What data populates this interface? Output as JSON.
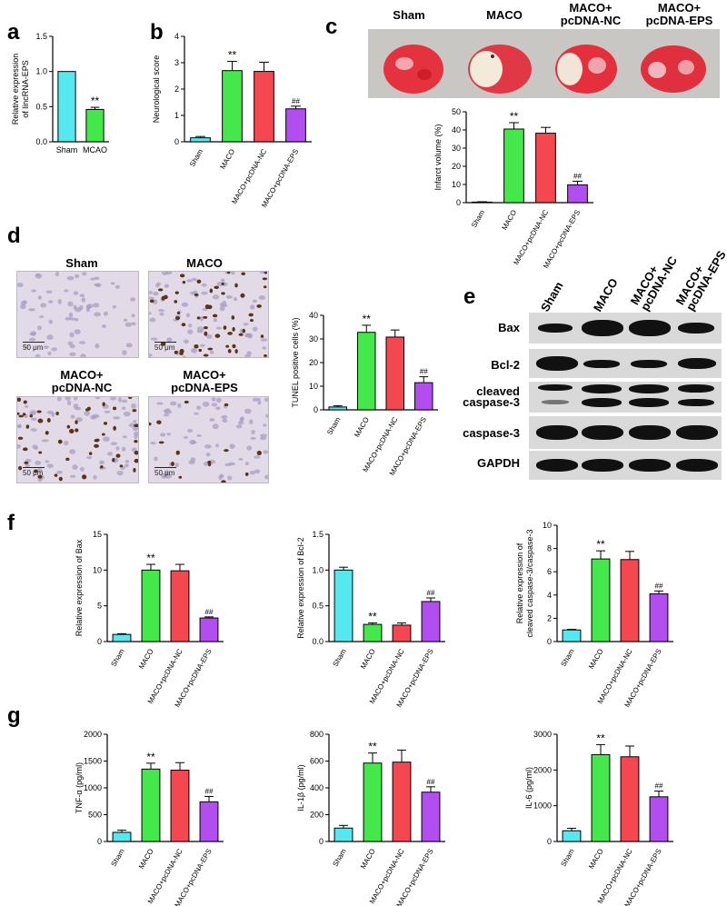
{
  "panels": {
    "a": "a",
    "b": "b",
    "c": "c",
    "d": "d",
    "e": "e",
    "f": "f",
    "g": "g"
  },
  "colors": {
    "sham": "#55e8ef",
    "maco": "#44e84a",
    "nc": "#f44750",
    "eps": "#b24ef0"
  },
  "photo_groups": {
    "sham": "Sham",
    "maco": "MACO",
    "nc_line1": "MACO+",
    "nc_line2": "pcDNA-NC",
    "eps_line1": "MACO+",
    "eps_line2": "pcDNA-EPS"
  },
  "scale_bar": "50 μm",
  "blot": {
    "rows": [
      "Bax",
      "Bcl-2",
      "cleaved",
      "caspase-3",
      "caspase-3",
      "GAPDH"
    ],
    "lanes": [
      {
        "l1": "Sham",
        "l2": ""
      },
      {
        "l1": "MACO",
        "l2": ""
      },
      {
        "l1": "MACO+",
        "l2": "pcDNA-NC"
      },
      {
        "l1": "MACO+",
        "l2": "pcDNA-EPS"
      }
    ]
  },
  "chart_data": [
    {
      "id": "a",
      "type": "bar",
      "categories": [
        "Sham",
        "MCAO"
      ],
      "values": [
        1.0,
        0.46
      ],
      "errors": [
        0,
        0.03
      ],
      "marks": [
        "",
        "**"
      ],
      "ylabel": [
        "Relative expression",
        "of lincRNA-EPS"
      ],
      "ylim": [
        0,
        1.5
      ],
      "yticks": [
        "0.0",
        "0.5",
        "1.0",
        "1.5"
      ],
      "rotate": false
    },
    {
      "id": "b",
      "type": "bar",
      "categories": [
        "Sham",
        "MACO",
        "MACO+pcDNA-NC",
        "MACO+pcDNA-EPS"
      ],
      "values": [
        0.15,
        2.7,
        2.67,
        1.25
      ],
      "errors": [
        0.05,
        0.35,
        0.35,
        0.1
      ],
      "marks": [
        "",
        "**",
        "",
        "##"
      ],
      "ylabel": [
        "Neurological score"
      ],
      "ylim": [
        0,
        4
      ],
      "yticks": [
        "0",
        "1",
        "2",
        "3",
        "4"
      ],
      "rotate": true
    },
    {
      "id": "c",
      "type": "bar",
      "categories": [
        "Sham",
        "MACO",
        "MACO+pcDNA-NC",
        "MACO+pcDNA-EPS"
      ],
      "values": [
        0.3,
        40.5,
        38.2,
        9.8
      ],
      "errors": [
        0.2,
        3.5,
        3.2,
        2.0
      ],
      "marks": [
        "",
        "**",
        "",
        "##"
      ],
      "ylabel": [
        "Infarct volume (%)"
      ],
      "ylim": [
        0,
        50
      ],
      "yticks": [
        "0",
        "10",
        "20",
        "30",
        "40",
        "50"
      ],
      "rotate": true
    },
    {
      "id": "d",
      "type": "bar",
      "categories": [
        "Sham",
        "MACO",
        "MACO+pcDNA-NC",
        "MACO+pcDNA-EPS"
      ],
      "values": [
        1.2,
        32.8,
        30.8,
        11.5
      ],
      "errors": [
        0.5,
        3.0,
        3.0,
        2.5
      ],
      "marks": [
        "",
        "**",
        "",
        "##"
      ],
      "ylabel": [
        "TUNEL positive cells (%)"
      ],
      "ylim": [
        0,
        40
      ],
      "yticks": [
        "0",
        "10",
        "20",
        "30",
        "40"
      ],
      "rotate": true
    },
    {
      "id": "f1",
      "type": "bar",
      "categories": [
        "Sham",
        "MACO",
        "MACO+pcDNA-NC",
        "MACO+pcDNA-EPS"
      ],
      "values": [
        1.0,
        10.0,
        9.9,
        3.3
      ],
      "errors": [
        0.1,
        0.8,
        0.9,
        0.15
      ],
      "marks": [
        "",
        "**",
        "",
        "##"
      ],
      "ylabel": [
        "Relative expression of Bax"
      ],
      "ylim": [
        0,
        15
      ],
      "yticks": [
        "0",
        "5",
        "10",
        "15"
      ],
      "rotate": true
    },
    {
      "id": "f2",
      "type": "bar",
      "categories": [
        "Sham",
        "MACO",
        "MACO+pcDNA-NC",
        "MACO+pcDNA-EPS"
      ],
      "values": [
        1.0,
        0.24,
        0.23,
        0.56
      ],
      "errors": [
        0.04,
        0.02,
        0.03,
        0.05
      ],
      "marks": [
        "",
        "**",
        "",
        "##"
      ],
      "ylabel": [
        "Relative expression of Bcl-2"
      ],
      "ylim": [
        0,
        1.5
      ],
      "yticks": [
        "0.0",
        "0.5",
        "1.0",
        "1.5"
      ],
      "rotate": true
    },
    {
      "id": "f3",
      "type": "bar",
      "categories": [
        "Sham",
        "MACO",
        "MACO+pcDNA-NC",
        "MACO+pcDNA-EPS"
      ],
      "values": [
        1.0,
        7.1,
        7.05,
        4.1
      ],
      "errors": [
        0.05,
        0.7,
        0.7,
        0.25
      ],
      "marks": [
        "",
        "**",
        "",
        "##"
      ],
      "ylabel": [
        "Relative expression of",
        "cleaved caspase-3/caspase-3"
      ],
      "ylim": [
        0,
        10
      ],
      "yticks": [
        "0",
        "2",
        "4",
        "6",
        "8",
        "10"
      ],
      "rotate": true
    },
    {
      "id": "g1",
      "type": "bar",
      "categories": [
        "Sham",
        "MACO",
        "MACO+pcDNA-NC",
        "MACO+pcDNA-EPS"
      ],
      "values": [
        170,
        1350,
        1330,
        740
      ],
      "errors": [
        40,
        110,
        140,
        100
      ],
      "marks": [
        "",
        "**",
        "",
        "##"
      ],
      "ylabel": [
        "TNF-α (pg/ml)"
      ],
      "ylim": [
        0,
        2000
      ],
      "yticks": [
        "0",
        "500",
        "1000",
        "1500",
        "2000"
      ],
      "rotate": true
    },
    {
      "id": "g2",
      "type": "bar",
      "categories": [
        "Sham",
        "MACO",
        "MACO+pcDNA-NC",
        "MACO+pcDNA-EPS"
      ],
      "values": [
        100,
        585,
        592,
        368
      ],
      "errors": [
        20,
        75,
        90,
        40
      ],
      "marks": [
        "",
        "**",
        "",
        "##"
      ],
      "ylabel": [
        "IL-1β (pg/ml)"
      ],
      "ylim": [
        0,
        800
      ],
      "yticks": [
        "0",
        "200",
        "400",
        "600",
        "800"
      ],
      "rotate": true
    },
    {
      "id": "g3",
      "type": "bar",
      "categories": [
        "Sham",
        "MACO",
        "MACO+pcDNA-NC",
        "MACO+pcDNA-EPS"
      ],
      "values": [
        300,
        2430,
        2370,
        1250
      ],
      "errors": [
        70,
        280,
        300,
        160
      ],
      "marks": [
        "",
        "**",
        "",
        "##"
      ],
      "ylabel": [
        "IL-6 (pg/ml)"
      ],
      "ylim": [
        0,
        3000
      ],
      "yticks": [
        "0",
        "1000",
        "2000",
        "3000"
      ],
      "rotate": true
    }
  ]
}
